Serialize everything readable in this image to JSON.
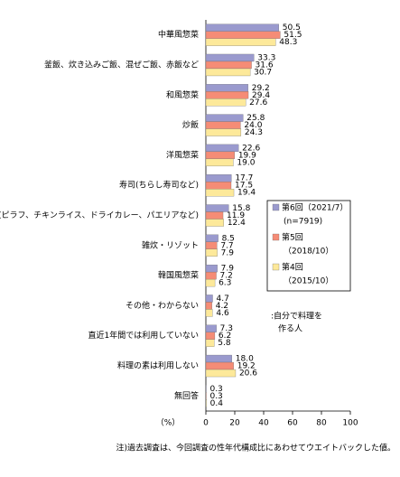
{
  "chart_data": {
    "type": "bar",
    "orientation": "horizontal",
    "categories": [
      "中華風惣菜",
      "釜飯、炊き込みご飯、混ぜご飯、赤飯など",
      "和風惣菜",
      "炒飯",
      "洋風惣菜",
      "寿司(ちらし寿司など)",
      "洋風ご飯(ピラフ、チキンライス、ドライカレー、パエリアなど)",
      "雑炊・リゾット",
      "韓国風惣菜",
      "その他・わからない",
      "直近1年間では利用していない",
      "料理の素は利用しない",
      "無回答"
    ],
    "series": [
      {
        "name": "第6回（2021/7）",
        "legend_line2": "(n=7919)",
        "color": "#9a9ace",
        "values": [
          50.5,
          33.3,
          29.2,
          25.8,
          22.6,
          17.7,
          15.8,
          8.5,
          7.9,
          4.7,
          7.3,
          18.0,
          0.3
        ],
        "value_labels": [
          "50.5",
          "33.3",
          "29.2",
          "25.8",
          "22.6",
          "17.7",
          "15.8",
          "8.5",
          "7.9",
          "4.7",
          "7.3",
          "18.0",
          "0.3"
        ]
      },
      {
        "name": "第5回",
        "legend_line2": "（2018/10）",
        "color": "#f58c76",
        "values": [
          51.5,
          31.6,
          29.4,
          24.0,
          19.9,
          17.5,
          11.9,
          7.7,
          7.2,
          4.2,
          6.2,
          19.2,
          0.3
        ],
        "value_labels": [
          "51.5",
          "31.6",
          "29.4",
          "24.0",
          "19.9",
          "17.5",
          "11.9",
          "7.7",
          "7.2",
          "4.2",
          "6.2",
          "19.2",
          "0.3"
        ]
      },
      {
        "name": "第4回",
        "legend_line2": "（2015/10）",
        "color": "#fde99a",
        "values": [
          48.3,
          30.7,
          27.6,
          24.3,
          19.0,
          19.4,
          12.4,
          7.9,
          6.3,
          4.6,
          5.8,
          20.6,
          0.4
        ],
        "value_labels": [
          "48.3",
          "30.7",
          "27.6",
          "24.3",
          "19.0",
          "19.4",
          "12.4",
          "7.9",
          "6.3",
          "4.6",
          "5.8",
          "20.6",
          "0.4"
        ]
      }
    ],
    "xlim": [
      0,
      100
    ],
    "xticks": [
      0,
      20,
      40,
      60,
      80,
      100
    ],
    "xlabel": "（%）",
    "annotations": [
      ":自分で料理を",
      "作る人"
    ],
    "footnote": "注)過去調査は、今回調査の性年代構成比にあわせてウエイトバックした値。"
  }
}
